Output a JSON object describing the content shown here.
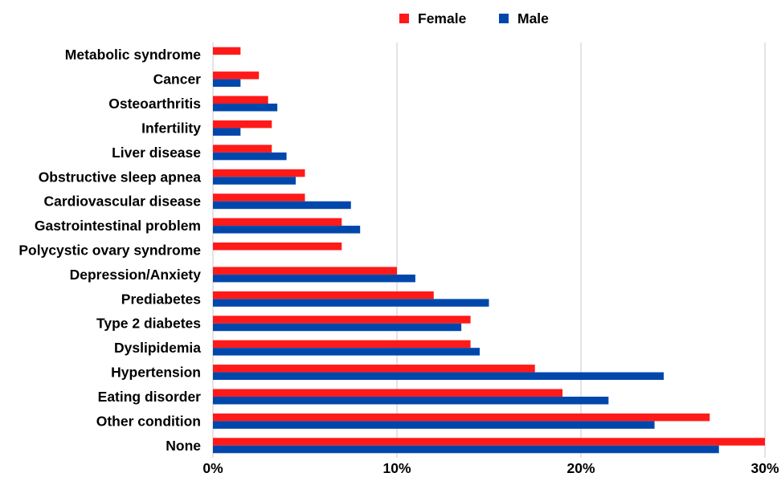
{
  "chart_data": {
    "type": "bar",
    "orientation": "horizontal",
    "categories": [
      "Metabolic syndrome",
      "Cancer",
      "Osteoarthritis",
      "Infertility",
      "Liver disease",
      "Obstructive sleep apnea",
      "Cardiovascular disease",
      "Gastrointestinal problem",
      "Polycystic ovary syndrome",
      "Depression/Anxiety",
      "Prediabetes",
      "Type 2 diabetes",
      "Dyslipidemia",
      "Hypertension",
      "Eating disorder",
      "Other condition",
      "None"
    ],
    "series": [
      {
        "name": "Female",
        "color": "#ff1a1a",
        "values": [
          1.5,
          2.5,
          3.0,
          3.2,
          3.2,
          5.0,
          5.0,
          7.0,
          7.0,
          10.0,
          12.0,
          14.0,
          14.0,
          17.5,
          19.0,
          27.0,
          30.0
        ]
      },
      {
        "name": "Male",
        "color": "#0047ab",
        "values": [
          0,
          1.5,
          3.5,
          1.5,
          4.0,
          4.5,
          7.5,
          8.0,
          0,
          11.0,
          15.0,
          13.5,
          14.5,
          24.5,
          21.5,
          24.0,
          27.5
        ]
      }
    ],
    "xlim": [
      0,
      30
    ],
    "xticks": [
      0,
      10,
      20,
      30
    ],
    "xtick_labels": [
      "0%",
      "10%",
      "20%",
      "30%"
    ],
    "grid": "vertical",
    "legend": "top-center",
    "title": "",
    "xlabel": "",
    "ylabel": ""
  }
}
